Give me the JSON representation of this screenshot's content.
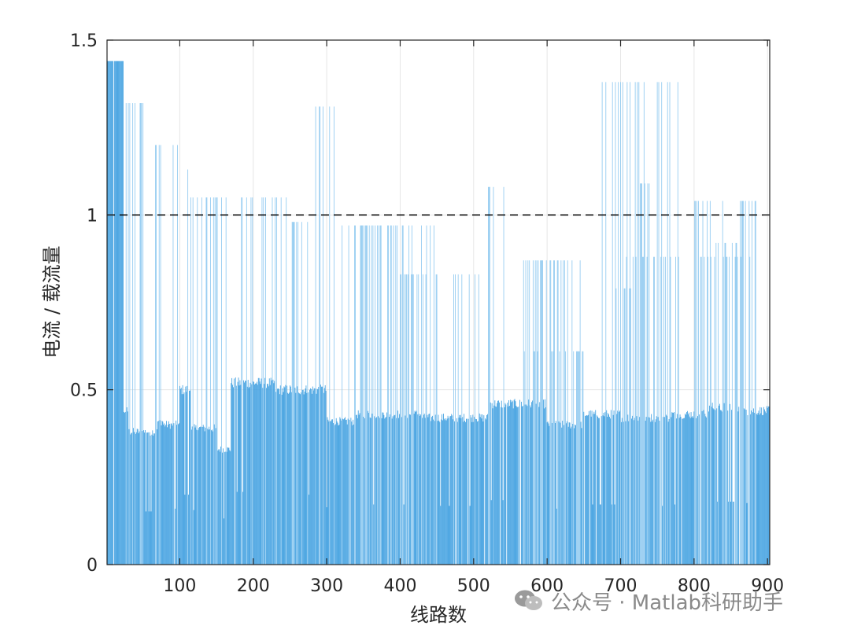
{
  "chart_data": {
    "type": "bar",
    "xlabel": "线路数",
    "ylabel": "电流 / 载流量",
    "xlim": [
      1,
      903
    ],
    "ylim": [
      0,
      1.5
    ],
    "xticks": [
      100,
      200,
      300,
      400,
      500,
      600,
      700,
      800,
      900
    ],
    "yticks": [
      0,
      0.5,
      1,
      1.5
    ],
    "ytick_labels": [
      "0",
      "0.5",
      "1",
      "1.5"
    ],
    "grid": true,
    "reference_line": {
      "y": 1.0,
      "style": "dashed",
      "color": "#000000"
    },
    "bar_color": "#3f9fe0",
    "bar_color_light": "#8fc9f0",
    "base_level": [
      [
        1,
        1.44
      ],
      [
        24,
        0.44
      ],
      [
        30,
        0.38
      ],
      [
        70,
        0.41
      ],
      [
        78,
        0.4
      ],
      [
        100,
        0.5
      ],
      [
        115,
        0.39
      ],
      [
        150,
        0.33
      ],
      [
        170,
        0.52
      ],
      [
        230,
        0.5
      ],
      [
        300,
        0.41
      ],
      [
        340,
        0.43
      ],
      [
        430,
        0.42
      ],
      [
        520,
        0.46
      ],
      [
        600,
        0.4
      ],
      [
        650,
        0.43
      ],
      [
        700,
        0.42
      ],
      [
        770,
        0.43
      ],
      [
        820,
        0.45
      ],
      [
        860,
        0.44
      ],
      [
        903,
        0.45
      ]
    ],
    "segments": [
      {
        "x": [
          1,
          23
        ],
        "y": 1.44
      },
      {
        "x": [
          24,
          60
        ],
        "y": 1.32
      },
      {
        "x": [
          61,
          100
        ],
        "y": 1.2
      },
      {
        "x": [
          100,
          113
        ],
        "y": 1.13
      },
      {
        "x": [
          113,
          245
        ],
        "y": 1.05
      },
      {
        "x": [
          253,
          278
        ],
        "y": 0.98
      },
      {
        "x": [
          285,
          310
        ],
        "y": 1.31
      },
      {
        "x": [
          315,
          450
        ],
        "y": 0.97
      },
      {
        "x": [
          400,
          450
        ],
        "y": 0.83
      },
      {
        "x": [
          455,
          530
        ],
        "y": 0.83
      },
      {
        "x": [
          515,
          545
        ],
        "y": 1.08
      },
      {
        "x": [
          565,
          650
        ],
        "y": 0.61
      },
      {
        "x": [
          565,
          600
        ],
        "y": 0.87
      },
      {
        "x": [
          570,
          645
        ],
        "y": 0.87
      },
      {
        "x": [
          668,
          785
        ],
        "y": 1.38
      },
      {
        "x": [
          690,
          720
        ],
        "y": 0.79
      },
      {
        "x": [
          700,
          780
        ],
        "y": 0.88
      },
      {
        "x": [
          725,
          740
        ],
        "y": 1.09
      },
      {
        "x": [
          800,
          885
        ],
        "y": 1.04
      },
      {
        "x": [
          800,
          885
        ],
        "y": 0.88
      },
      {
        "x": [
          830,
          860
        ],
        "y": 0.92
      }
    ]
  },
  "watermark": {
    "text": "公众号 · Matlab科研助手",
    "icon": "wechat-icon"
  }
}
